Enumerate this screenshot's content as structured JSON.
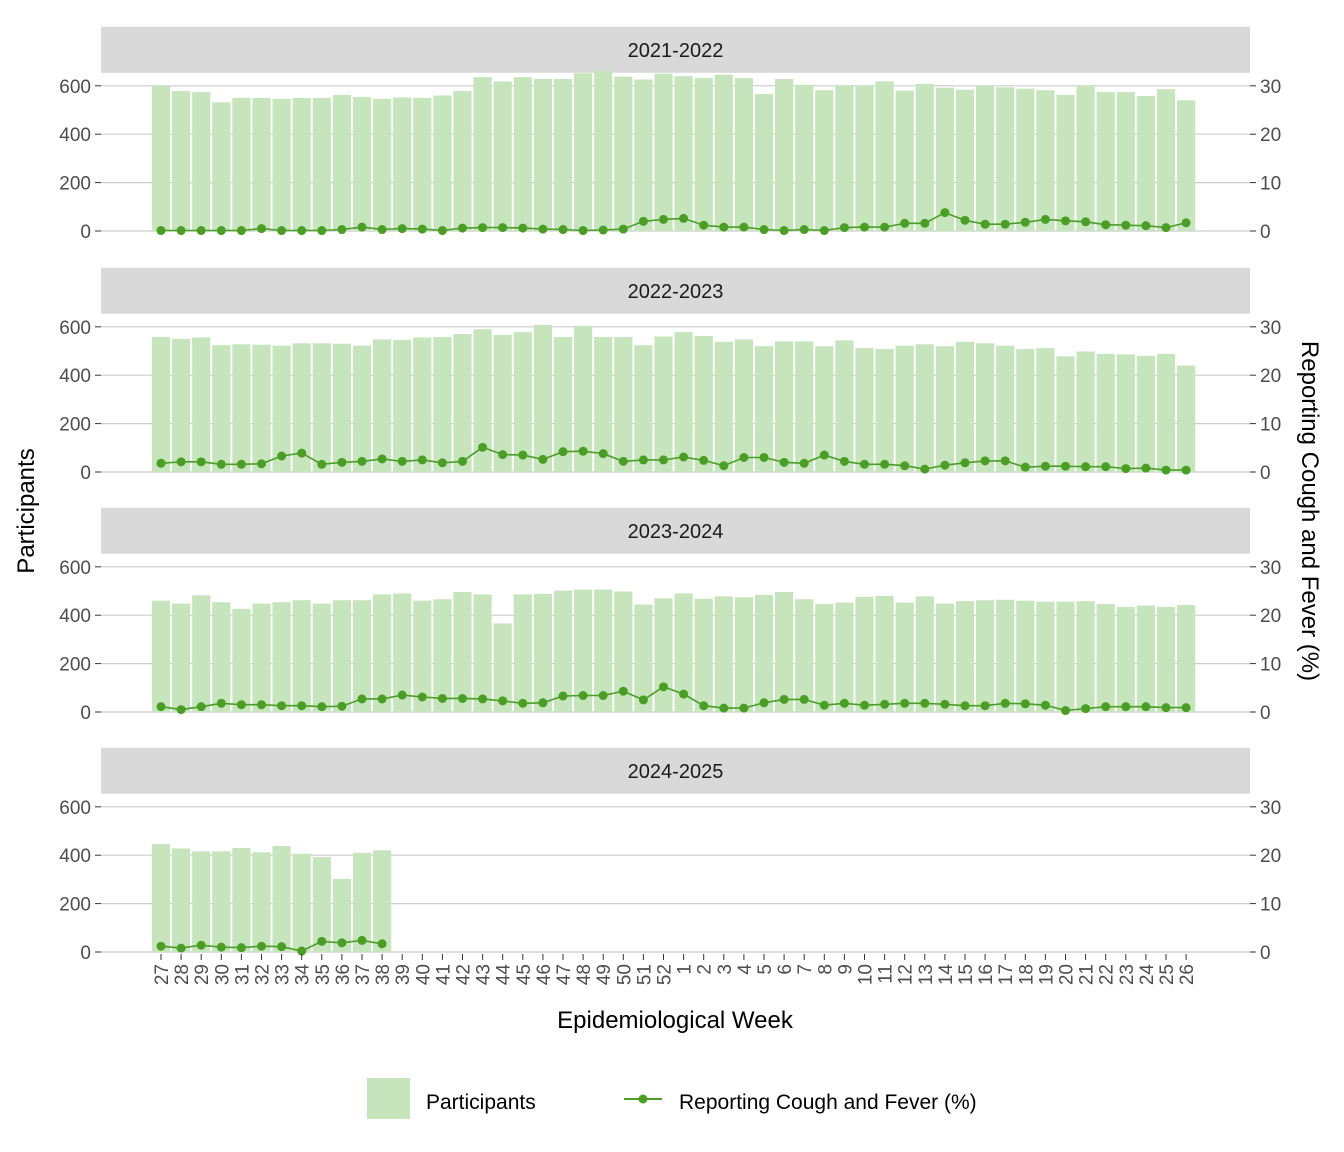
{
  "chart_data": {
    "type": "bar",
    "xlabel": "Epidemiological Week",
    "ylabel": "Participants",
    "y2label": "Reporting Cough and Fever (%)",
    "ylim": [
      0,
      600
    ],
    "y2lim": [
      0,
      30
    ],
    "y_ticks": [
      "0",
      "200",
      "400",
      "600"
    ],
    "y2_ticks": [
      "0",
      "10",
      "20",
      "30"
    ],
    "grid": true,
    "legend_position": "bottom",
    "legend": [
      "Participants",
      "Reporting Cough and Fever (%)"
    ],
    "colors": {
      "bars": "#c7e5bd",
      "line": "#4a9e25",
      "strip": "#d9d9d9",
      "grid": "#cccccc"
    },
    "categories": [
      "27",
      "28",
      "29",
      "30",
      "31",
      "32",
      "33",
      "34",
      "35",
      "36",
      "37",
      "38",
      "39",
      "40",
      "41",
      "42",
      "43",
      "44",
      "45",
      "46",
      "47",
      "48",
      "49",
      "50",
      "51",
      "52",
      "1",
      "2",
      "3",
      "4",
      "5",
      "6",
      "7",
      "8",
      "9",
      "10",
      "11",
      "12",
      "13",
      "14",
      "15",
      "16",
      "17",
      "18",
      "19",
      "20",
      "21",
      "22",
      "23",
      "24",
      "25",
      "26"
    ],
    "panels": [
      {
        "title": "2021-2022",
        "participants": [
          600,
          578,
          574,
          532,
          550,
          550,
          546,
          550,
          550,
          562,
          554,
          546,
          552,
          550,
          560,
          578,
          636,
          618,
          636,
          628,
          628,
          652,
          662,
          638,
          626,
          650,
          640,
          632,
          646,
          632,
          566,
          628,
          604,
          582,
          602,
          602,
          618,
          580,
          608,
          592,
          584,
          600,
          594,
          588,
          582,
          562,
          602,
          574,
          574,
          558,
          586,
          540
        ],
        "cough_fever": [
          0.1,
          0.1,
          0.1,
          0.1,
          0.1,
          0.5,
          0.1,
          0.1,
          0.1,
          0.3,
          0.8,
          0.3,
          0.5,
          0.4,
          0.1,
          0.6,
          0.7,
          0.7,
          0.6,
          0.4,
          0.3,
          0.1,
          0.2,
          0.4,
          2.0,
          2.4,
          2.6,
          1.2,
          0.8,
          0.8,
          0.3,
          0.1,
          0.3,
          0.1,
          0.7,
          0.8,
          0.8,
          1.6,
          1.6,
          3.8,
          2.2,
          1.4,
          1.4,
          1.8,
          2.4,
          2.1,
          1.9,
          1.3,
          1.2,
          1.1,
          0.7,
          1.7
        ]
      },
      {
        "title": "2022-2023",
        "participants": [
          558,
          550,
          556,
          524,
          528,
          526,
          522,
          532,
          532,
          530,
          522,
          548,
          546,
          556,
          558,
          570,
          590,
          566,
          578,
          608,
          558,
          604,
          558,
          558,
          524,
          560,
          578,
          562,
          538,
          548,
          520,
          540,
          540,
          520,
          544,
          512,
          508,
          522,
          528,
          520,
          538,
          532,
          522,
          508,
          512,
          478,
          498,
          488,
          486,
          480,
          488,
          440
        ],
        "cough_fever": [
          1.8,
          2.1,
          2.1,
          1.6,
          1.6,
          1.7,
          3.3,
          3.9,
          1.6,
          2.0,
          2.2,
          2.7,
          2.2,
          2.5,
          1.9,
          2.2,
          5.1,
          3.6,
          3.5,
          2.6,
          4.2,
          4.3,
          3.8,
          2.2,
          2.5,
          2.5,
          3.1,
          2.4,
          1.3,
          3.0,
          3.0,
          2.0,
          1.8,
          3.5,
          2.2,
          1.6,
          1.6,
          1.3,
          0.6,
          1.4,
          1.9,
          2.3,
          2.3,
          1.0,
          1.2,
          1.2,
          1.1,
          1.1,
          0.7,
          0.8,
          0.4,
          0.4
        ]
      },
      {
        "title": "2023-2024",
        "participants": [
          460,
          448,
          482,
          454,
          426,
          448,
          454,
          462,
          448,
          462,
          462,
          486,
          490,
          460,
          466,
          496,
          486,
          366,
          486,
          488,
          502,
          506,
          506,
          498,
          444,
          470,
          490,
          468,
          478,
          474,
          484,
          496,
          466,
          446,
          452,
          476,
          480,
          452,
          478,
          448,
          458,
          462,
          464,
          460,
          456,
          456,
          458,
          446,
          434,
          440,
          434,
          442
        ],
        "cough_fever": [
          1.1,
          0.5,
          1.1,
          1.8,
          1.5,
          1.5,
          1.3,
          1.3,
          1.1,
          1.2,
          2.7,
          2.7,
          3.5,
          3.1,
          2.8,
          2.8,
          2.7,
          2.3,
          1.8,
          1.9,
          3.3,
          3.4,
          3.4,
          4.3,
          2.5,
          5.2,
          3.7,
          1.3,
          0.8,
          0.8,
          1.9,
          2.6,
          2.6,
          1.4,
          1.8,
          1.4,
          1.6,
          1.8,
          1.8,
          1.6,
          1.3,
          1.3,
          1.8,
          1.7,
          1.4,
          0.3,
          0.7,
          1.1,
          1.1,
          1.1,
          0.9,
          0.9
        ]
      },
      {
        "title": "2024-2025",
        "participants": [
          446,
          428,
          416,
          416,
          430,
          412,
          438,
          406,
          392,
          302,
          410,
          420
        ],
        "cough_fever": [
          1.2,
          0.8,
          1.4,
          1.0,
          0.9,
          1.2,
          1.1,
          0.2,
          2.2,
          1.9,
          2.4,
          1.7
        ]
      }
    ]
  }
}
